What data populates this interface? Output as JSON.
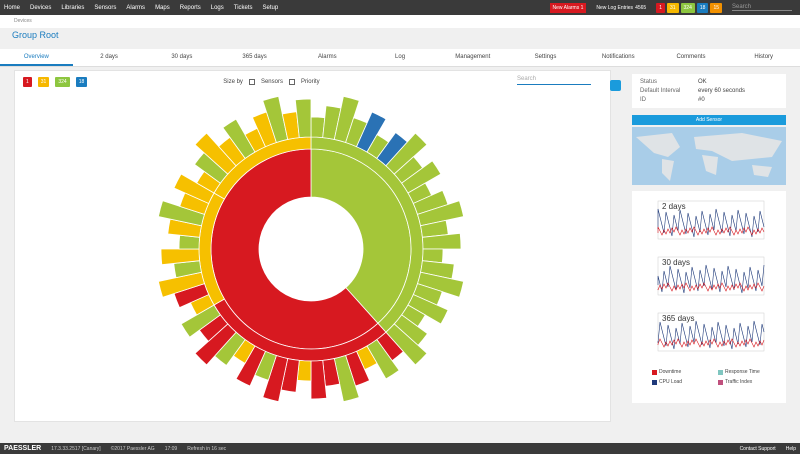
{
  "nav": {
    "items": [
      "Home",
      "Devices",
      "Libraries",
      "Sensors",
      "Alarms",
      "Maps",
      "Reports",
      "Logs",
      "Tickets",
      "Setup"
    ],
    "alarms_badge": "New Alarms 1",
    "log_badge": "New Log Entries",
    "log_count": "4565",
    "status_counts": [
      "1",
      "31",
      "324",
      "18",
      "15"
    ],
    "search": "Search"
  },
  "breadcrumb": "Devices",
  "page_title": "Group Root",
  "tabs": [
    "Overview",
    "2 days",
    "30 days",
    "365 days",
    "Alarms",
    "Log",
    "Management",
    "Settings",
    "Notifications",
    "Comments",
    "History"
  ],
  "toolbar": {
    "counts": [
      "1",
      "31",
      "324",
      "18"
    ],
    "size_label": "Size by",
    "options": [
      "Sensors",
      "Priority"
    ],
    "search": "Search"
  },
  "info": {
    "rows": [
      [
        "Status",
        "OK"
      ],
      [
        "Default Interval",
        "every 60 seconds"
      ],
      [
        "ID",
        "#0"
      ]
    ]
  },
  "add_sensor": "Add Sensor",
  "graphs": [
    "2 days",
    "30 days",
    "365 days"
  ],
  "legend": [
    "Downtime",
    "Response Time",
    "CPU Load",
    "Traffic Index"
  ],
  "footer": {
    "brand": "PAESSLER",
    "version": "17.3.33.2517 [Canary]",
    "copyright": "©2017 Paessler AG",
    "time": "17:09",
    "refresh": "Refresh in 16 sec",
    "support": "Contact Support",
    "help": "Help"
  }
}
